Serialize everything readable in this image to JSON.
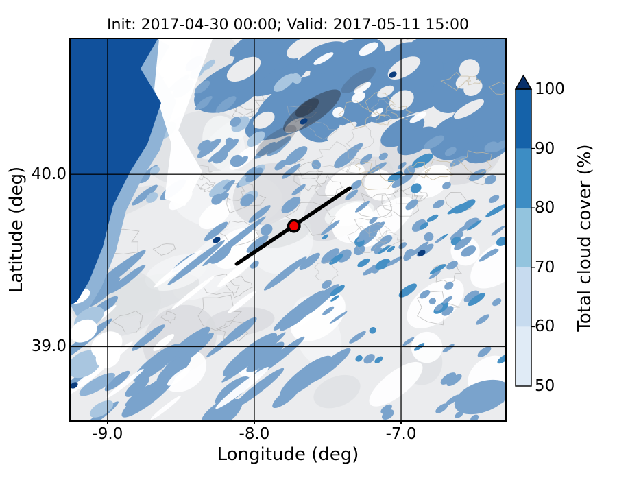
{
  "figure": {
    "title": "Init: 2017-04-30 00:00; Valid: 2017-05-11 15:00",
    "xlabel": "Longitude (deg)",
    "ylabel": "Latitude (deg)"
  },
  "axes": {
    "xlim": [
      -9.252,
      -6.29
    ],
    "ylim": [
      38.572,
      40.785
    ],
    "xticks": [
      {
        "value": -9.0,
        "label": "-9.0"
      },
      {
        "value": -8.0,
        "label": "-8.0"
      },
      {
        "value": -7.0,
        "label": "-7.0"
      }
    ],
    "yticks": [
      {
        "value": 40.0,
        "label": "40.0"
      },
      {
        "value": 39.0,
        "label": "39.0"
      }
    ],
    "grid": true
  },
  "colorbar": {
    "label": "Total cloud cover (%)",
    "ticks": [
      100,
      90,
      80,
      70,
      60,
      50
    ],
    "vmin": 50,
    "vmax": 100,
    "extend": "max",
    "extend_color": "#08306b",
    "segments": [
      {
        "from": 50,
        "to": 60,
        "color": "#e0ebf6"
      },
      {
        "from": 60,
        "to": 70,
        "color": "#c7dbef"
      },
      {
        "from": 70,
        "to": 80,
        "color": "#93c4de"
      },
      {
        "from": 80,
        "to": 90,
        "color": "#3d8dc4"
      },
      {
        "from": 90,
        "to": 100,
        "color": "#1562a9"
      }
    ]
  },
  "overlays": {
    "marker": {
      "lon": -7.73,
      "lat": 39.7
    },
    "cross_section_line": {
      "lon1": -8.12,
      "lat1": 39.48,
      "lon2": -7.35,
      "lat2": 39.92
    }
  },
  "map": {
    "colors": {
      "land": "#ebecee",
      "land_shade": "#dfe1e4",
      "white": "#ffffff",
      "ocean": "#11519c",
      "coast": "#8fb3d6",
      "cloud": "#7aa3cc",
      "cloud_dense": "#6392c2",
      "cloud_light": "#a9c6e0",
      "cloud_dark": "#4590c5",
      "speck": "#0b3d7e",
      "contour": "#b6b6b6",
      "contour_tan": "#c8bba0",
      "smudge": "#252b36",
      "grid": "#000000",
      "marker_fill": "#ee0000",
      "marker_edge": "#000000",
      "line": "#000000"
    },
    "features": [
      "solid overcast band over Atlantic along western edge",
      "broken cloud mass across northern third",
      "SW-NE oriented cloud streets over interior",
      "mostly clear south-central and southeastern areas",
      "dark terrain-shadow smudge near top center"
    ]
  },
  "chart_data": {
    "type": "heatmap",
    "title": "Init: 2017-04-30 00:00; Valid: 2017-05-11 15:00",
    "xlabel": "Longitude (deg)",
    "ylabel": "Latitude (deg)",
    "xlim": [
      -9.25,
      -6.29
    ],
    "ylim": [
      38.57,
      40.79
    ],
    "xticks": [
      -9.0,
      -8.0,
      -7.0
    ],
    "yticks": [
      39.0,
      40.0
    ],
    "grid": true,
    "colorbar_label": "Total cloud cover (%)",
    "levels": [
      50,
      60,
      70,
      80,
      90,
      100
    ],
    "level_colors": [
      "#e0ebf6",
      "#c7dbef",
      "#93c4de",
      "#3d8dc4",
      "#1562a9"
    ],
    "extend": "max",
    "extend_color": "#08306b",
    "annotations": [
      {
        "type": "marker",
        "lon": -7.73,
        "lat": 39.7,
        "style": "red filled circle with black edge"
      },
      {
        "type": "line",
        "from": [
          -8.12,
          39.48
        ],
        "to": [
          -7.35,
          39.92
        ],
        "style": "thick black straight line"
      }
    ],
    "field_summary": [
      {
        "area": "western edge (Atlantic)",
        "cloud_cover_pct": "90-100"
      },
      {
        "area": "coastal strip",
        "cloud_cover_pct": "70-90"
      },
      {
        "area": "northern third",
        "cloud_cover_pct": "60-90 broken"
      },
      {
        "area": "interior cloud streets",
        "cloud_cover_pct": "70-90"
      },
      {
        "area": "south-central / southeast",
        "cloud_cover_pct": "<50"
      }
    ]
  }
}
